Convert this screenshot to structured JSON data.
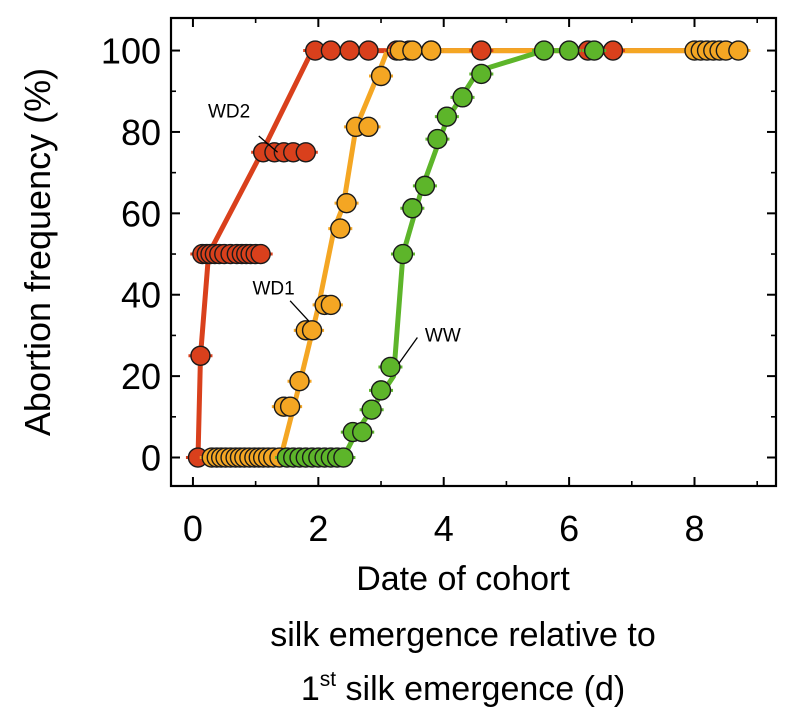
{
  "chart_data": {
    "type": "line",
    "ylabel": "Abortion frequency (%)",
    "xlabel_lines": [
      "Date of cohort",
      "silk emergence relative to"
    ],
    "xlabel_last": {
      "pre": "1",
      "sup": "st",
      "post": " silk emergence (d)"
    },
    "xlim": [
      -0.35,
      9.3
    ],
    "ylim": [
      -7,
      108
    ],
    "xticks": [
      0,
      2,
      4,
      6,
      8
    ],
    "yticks": [
      0,
      20,
      40,
      60,
      80,
      100
    ],
    "grid": false,
    "legend": "none",
    "series": [
      {
        "label": "WD2",
        "color": "#d9401c",
        "line": [
          [
            0.08,
            0
          ],
          [
            0.12,
            25
          ],
          [
            0.25,
            50
          ],
          [
            1.1,
            75
          ],
          [
            1.9,
            100
          ],
          [
            8.7,
            100
          ]
        ],
        "points": [
          [
            0.08,
            0
          ],
          [
            0.12,
            25
          ],
          [
            0.15,
            50
          ],
          [
            0.22,
            50
          ],
          [
            0.28,
            50
          ],
          [
            0.35,
            50
          ],
          [
            0.42,
            50
          ],
          [
            0.5,
            50
          ],
          [
            0.6,
            50
          ],
          [
            0.7,
            50
          ],
          [
            0.78,
            50
          ],
          [
            0.85,
            50
          ],
          [
            0.92,
            50
          ],
          [
            1.0,
            50
          ],
          [
            1.08,
            50
          ],
          [
            1.12,
            75
          ],
          [
            1.3,
            75
          ],
          [
            1.45,
            75
          ],
          [
            1.6,
            75
          ],
          [
            1.8,
            75
          ],
          [
            1.95,
            100
          ],
          [
            2.2,
            100
          ],
          [
            2.5,
            100
          ],
          [
            2.8,
            100
          ],
          [
            3.25,
            100
          ],
          [
            3.45,
            100
          ],
          [
            3.8,
            100
          ],
          [
            4.6,
            100
          ],
          [
            6.3,
            100
          ],
          [
            6.7,
            100
          ]
        ]
      },
      {
        "label": "WD1",
        "color": "#f4a623",
        "line": [
          [
            0.08,
            0
          ],
          [
            1.4,
            0
          ],
          [
            1.7,
            18
          ],
          [
            2.0,
            37
          ],
          [
            2.25,
            56
          ],
          [
            2.4,
            62
          ],
          [
            2.6,
            81
          ],
          [
            2.95,
            94
          ],
          [
            3.1,
            100
          ],
          [
            8.7,
            100
          ]
        ],
        "points": [
          [
            0.3,
            0
          ],
          [
            0.38,
            0
          ],
          [
            0.45,
            0
          ],
          [
            0.52,
            0
          ],
          [
            0.6,
            0
          ],
          [
            0.68,
            0
          ],
          [
            0.75,
            0
          ],
          [
            0.82,
            0
          ],
          [
            0.9,
            0
          ],
          [
            0.98,
            0
          ],
          [
            1.05,
            0
          ],
          [
            1.12,
            0
          ],
          [
            1.2,
            0
          ],
          [
            1.28,
            0
          ],
          [
            1.38,
            0
          ],
          [
            1.45,
            12.5
          ],
          [
            1.55,
            12.5
          ],
          [
            1.7,
            18.75
          ],
          [
            1.8,
            31.25
          ],
          [
            1.9,
            31.25
          ],
          [
            2.1,
            37.5
          ],
          [
            2.2,
            37.5
          ],
          [
            2.35,
            56.25
          ],
          [
            2.45,
            62.5
          ],
          [
            2.6,
            81.25
          ],
          [
            2.8,
            81.25
          ],
          [
            3.0,
            93.75
          ],
          [
            3.3,
            100
          ],
          [
            3.5,
            100
          ],
          [
            3.8,
            100
          ],
          [
            8.0,
            100
          ],
          [
            8.1,
            100
          ],
          [
            8.2,
            100
          ],
          [
            8.3,
            100
          ],
          [
            8.4,
            100
          ],
          [
            8.5,
            100
          ],
          [
            8.7,
            100
          ]
        ]
      },
      {
        "label": "WW",
        "color": "#5db52a",
        "line": [
          [
            1.45,
            0
          ],
          [
            2.4,
            0
          ],
          [
            2.6,
            6
          ],
          [
            3.2,
            20
          ],
          [
            3.35,
            50
          ],
          [
            3.65,
            66
          ],
          [
            4.05,
            83
          ],
          [
            4.55,
            95
          ],
          [
            5.6,
            100
          ],
          [
            6.3,
            100
          ]
        ],
        "points": [
          [
            1.5,
            0
          ],
          [
            1.6,
            0
          ],
          [
            1.7,
            0
          ],
          [
            1.8,
            0
          ],
          [
            1.9,
            0
          ],
          [
            2.0,
            0
          ],
          [
            2.1,
            0
          ],
          [
            2.2,
            0
          ],
          [
            2.3,
            0
          ],
          [
            2.4,
            0
          ],
          [
            2.55,
            6.25
          ],
          [
            2.7,
            6.25
          ],
          [
            2.85,
            11.75
          ],
          [
            3.0,
            16.5
          ],
          [
            3.15,
            22.25
          ],
          [
            3.35,
            50
          ],
          [
            3.5,
            61.25
          ],
          [
            3.7,
            66.75
          ],
          [
            3.9,
            78.25
          ],
          [
            4.05,
            83.75
          ],
          [
            4.3,
            88.5
          ],
          [
            4.6,
            94.25
          ],
          [
            5.6,
            100
          ],
          [
            6.0,
            100
          ],
          [
            6.4,
            100
          ]
        ]
      }
    ],
    "annotations": [
      {
        "text": "WD2",
        "series": 0,
        "tx": 0.24,
        "ty": 83.5,
        "lx1": 1.05,
        "ly1": 79,
        "lx2": 1.35,
        "ly2": 75
      },
      {
        "text": "WD1",
        "series": 1,
        "tx": 0.95,
        "ty": 40.0,
        "lx1": 1.55,
        "ly1": 38.5,
        "lx2": 1.85,
        "ly2": 33.5
      },
      {
        "text": "WW",
        "series": 2,
        "tx": 3.7,
        "ty": 28.5,
        "lx1": 3.58,
        "ly1": 29.5,
        "lx2": 3.28,
        "ly2": 23
      }
    ]
  }
}
